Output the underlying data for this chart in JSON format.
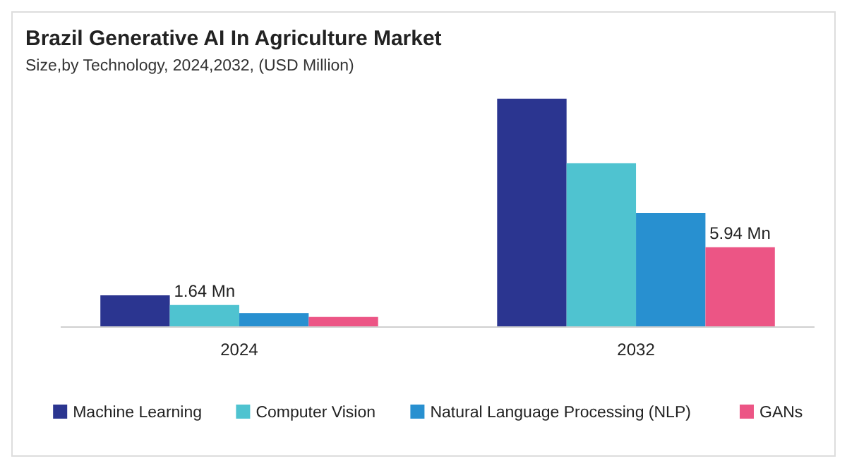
{
  "chart_data": {
    "type": "bar",
    "title": "Brazil Generative AI In Agriculture Market",
    "subtitle": "Size,by Technology, 2024,2032, (USD Million)",
    "categories": [
      "2024",
      "2032"
    ],
    "legend": "bottom",
    "series": [
      {
        "name": "Machine Learning",
        "color": "#2b3590",
        "values": [
          2.36,
          17.0
        ]
      },
      {
        "name": "Computer Vision",
        "color": "#4fc3d0",
        "values": [
          1.64,
          12.2
        ],
        "value_labels": [
          "1.64 Mn",
          null
        ]
      },
      {
        "name": "Natural Language Processing (NLP)",
        "color": "#2890d0",
        "values": [
          1.04,
          8.5
        ]
      },
      {
        "name": "GANs",
        "color": "#ec5585",
        "values": [
          0.75,
          5.94
        ],
        "value_labels": [
          null,
          "5.94 Mn"
        ]
      }
    ]
  }
}
